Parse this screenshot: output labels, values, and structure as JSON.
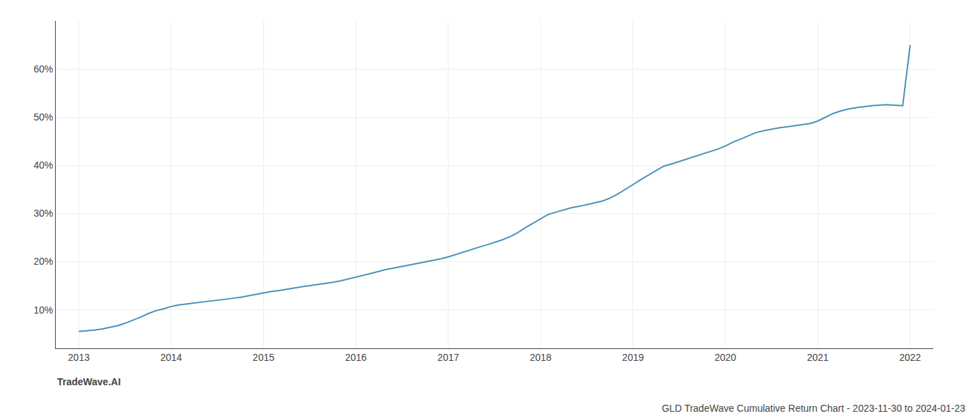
{
  "chart_data": {
    "type": "line",
    "title": "GLD TradeWave Cumulative Return Chart - 2023-11-30 to 2024-01-23",
    "annotations": [
      "TradeWave.AI"
    ],
    "color": "#4a90b8",
    "x": [
      2013.0,
      2013.08,
      2013.17,
      2013.25,
      2013.33,
      2013.42,
      2013.5,
      2013.58,
      2013.67,
      2013.75,
      2013.83,
      2013.92,
      2014.0,
      2014.08,
      2014.17,
      2014.25,
      2014.33,
      2014.42,
      2014.5,
      2014.58,
      2014.67,
      2014.75,
      2014.83,
      2014.92,
      2015.0,
      2015.08,
      2015.17,
      2015.25,
      2015.33,
      2015.42,
      2015.5,
      2015.58,
      2015.67,
      2015.75,
      2015.83,
      2015.92,
      2016.0,
      2016.08,
      2016.17,
      2016.25,
      2016.33,
      2016.42,
      2016.5,
      2016.58,
      2016.67,
      2016.75,
      2016.83,
      2016.92,
      2017.0,
      2017.08,
      2017.17,
      2017.25,
      2017.33,
      2017.42,
      2017.5,
      2017.58,
      2017.67,
      2017.75,
      2017.83,
      2017.92,
      2018.0,
      2018.08,
      2018.17,
      2018.25,
      2018.33,
      2018.42,
      2018.5,
      2018.58,
      2018.67,
      2018.75,
      2018.83,
      2018.92,
      2019.0,
      2019.08,
      2019.17,
      2019.25,
      2019.33,
      2019.42,
      2019.5,
      2019.58,
      2019.67,
      2019.75,
      2019.83,
      2019.92,
      2020.0,
      2020.08,
      2020.17,
      2020.25,
      2020.33,
      2020.42,
      2020.5,
      2020.58,
      2020.67,
      2020.75,
      2020.83,
      2020.92,
      2021.0,
      2021.08,
      2021.17,
      2021.25,
      2021.33,
      2021.42,
      2021.5,
      2021.58,
      2021.67,
      2021.75,
      2021.83,
      2021.92,
      2022.0
    ],
    "values": [
      5.5,
      5.6,
      5.8,
      6.0,
      6.3,
      6.7,
      7.2,
      7.8,
      8.5,
      9.2,
      9.8,
      10.2,
      10.7,
      11.0,
      11.2,
      11.4,
      11.6,
      11.8,
      12.0,
      12.2,
      12.4,
      12.6,
      12.9,
      13.2,
      13.5,
      13.8,
      14.0,
      14.3,
      14.5,
      14.8,
      15.0,
      15.2,
      15.4,
      15.7,
      16.0,
      16.4,
      16.8,
      17.2,
      17.6,
      18.0,
      18.4,
      18.7,
      19.0,
      19.3,
      19.6,
      19.9,
      20.2,
      20.6,
      21.0,
      21.5,
      22.0,
      22.5,
      23.0,
      23.5,
      24.0,
      24.5,
      25.2,
      26.0,
      27.0,
      28.0,
      29.0,
      29.8,
      30.3,
      30.8,
      31.2,
      31.5,
      31.8,
      32.2,
      32.6,
      33.2,
      34.0,
      35.0,
      36.0,
      37.0,
      38.0,
      39.0,
      39.8,
      40.3,
      40.8,
      41.3,
      41.8,
      42.3,
      42.8,
      43.4,
      44.0,
      44.8,
      45.5,
      46.2,
      46.8,
      47.2,
      47.5,
      47.8,
      48.0,
      48.2,
      48.4,
      48.7,
      49.2,
      50.0,
      50.8,
      51.3,
      51.7,
      52.0,
      52.2,
      52.4,
      52.5,
      52.6,
      52.5,
      52.4,
      65.0
    ],
    "xlim": [
      2012.75,
      2022.25
    ],
    "xticks": [
      2013,
      2014,
      2015,
      2016,
      2017,
      2018,
      2019,
      2020,
      2021,
      2022
    ],
    "ylim": [
      2,
      70
    ],
    "yticks": [
      {
        "value": 10,
        "label": "10%"
      },
      {
        "value": 20,
        "label": "20%"
      },
      {
        "value": 30,
        "label": "30%"
      },
      {
        "value": 40,
        "label": "40%"
      },
      {
        "value": 50,
        "label": "50%"
      },
      {
        "value": 60,
        "label": "60%"
      }
    ],
    "grid": true
  }
}
